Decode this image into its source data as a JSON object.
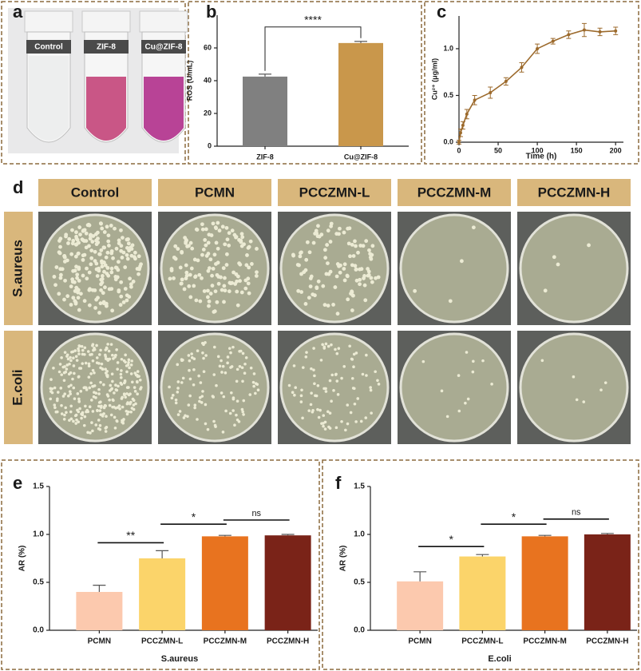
{
  "panel_labels": [
    "a",
    "b",
    "c",
    "d",
    "e",
    "f"
  ],
  "photo_a": {
    "tube_labels": [
      "Control",
      "ZIF-8",
      "Cu@ZIF-8"
    ]
  },
  "photo_d": {
    "columns": [
      "Control",
      "PCMN",
      "PCCZMN-L",
      "PCCZMN-M",
      "PCCZMN-H"
    ],
    "rows": [
      "S.aureus",
      "E.coli"
    ]
  },
  "chart_data": [
    {
      "type": "bar",
      "ylabel": "ROS (U/mL)",
      "categories": [
        "ZIF-8",
        "Cu@ZIF-8"
      ],
      "values": [
        42.5,
        63
      ],
      "errors": [
        1.5,
        1
      ],
      "colors": [
        "#808080",
        "#c9974b"
      ],
      "ylim": [
        0,
        80
      ],
      "yticks": [
        0,
        20,
        40,
        60
      ],
      "significance": [
        "****"
      ]
    },
    {
      "type": "line",
      "xlabel": "Time (h)",
      "ylabel": "Cu²⁺ (μg/ml)",
      "x": [
        0,
        2,
        5,
        10,
        20,
        40,
        60,
        80,
        100,
        120,
        140,
        160,
        180,
        200
      ],
      "values": [
        0,
        0.1,
        0.18,
        0.3,
        0.45,
        0.53,
        0.65,
        0.8,
        1.0,
        1.08,
        1.15,
        1.2,
        1.18,
        1.19
      ],
      "errors": [
        0.02,
        0.04,
        0.04,
        0.05,
        0.05,
        0.06,
        0.04,
        0.05,
        0.05,
        0.03,
        0.04,
        0.07,
        0.04,
        0.04
      ],
      "color": "#9c6a2c",
      "xlim": [
        0,
        210
      ],
      "ylim": [
        0,
        1.35
      ],
      "xticks": [
        0,
        50,
        100,
        150,
        200
      ],
      "yticks": [
        {
          "value": 0,
          "label": "0.0"
        },
        {
          "value": 0.5,
          "label": "0.5"
        },
        {
          "value": 1,
          "label": "1.0"
        }
      ]
    },
    {
      "type": "bar",
      "xlabel": "S.aureus",
      "ylabel": "AR (%)",
      "categories": [
        "PCMN",
        "PCCZMN-L",
        "PCCZMN-M",
        "PCCZMN-H"
      ],
      "values": [
        0.4,
        0.75,
        0.98,
        0.99
      ],
      "errors": [
        0.07,
        0.08,
        0.01,
        0.01
      ],
      "colors": [
        "#fcc9ae",
        "#fbd46a",
        "#e8731f",
        "#7a2318"
      ],
      "ylim": [
        0,
        1.5
      ],
      "yticks": [
        {
          "value": 0,
          "label": "0.0"
        },
        {
          "value": 0.5,
          "label": "0.5"
        },
        {
          "value": 1,
          "label": "1.0"
        },
        {
          "value": 1.5,
          "label": "1.5"
        }
      ],
      "significance": [
        "**",
        "*",
        "ns"
      ]
    },
    {
      "type": "bar",
      "xlabel": "E.coli",
      "ylabel": "AR (%)",
      "categories": [
        "PCMN",
        "PCCZMN-L",
        "PCCZMN-M",
        "PCCZMN-H"
      ],
      "values": [
        0.51,
        0.77,
        0.98,
        1.0
      ],
      "errors": [
        0.1,
        0.02,
        0.01,
        0.01
      ],
      "colors": [
        "#fcc9ae",
        "#fbd46a",
        "#e8731f",
        "#7a2318"
      ],
      "ylim": [
        0,
        1.5
      ],
      "yticks": [
        {
          "value": 0,
          "label": "0.0"
        },
        {
          "value": 0.5,
          "label": "0.5"
        },
        {
          "value": 1,
          "label": "1.0"
        },
        {
          "value": 1.5,
          "label": "1.5"
        }
      ],
      "significance": [
        "*",
        "*",
        "ns"
      ]
    }
  ]
}
